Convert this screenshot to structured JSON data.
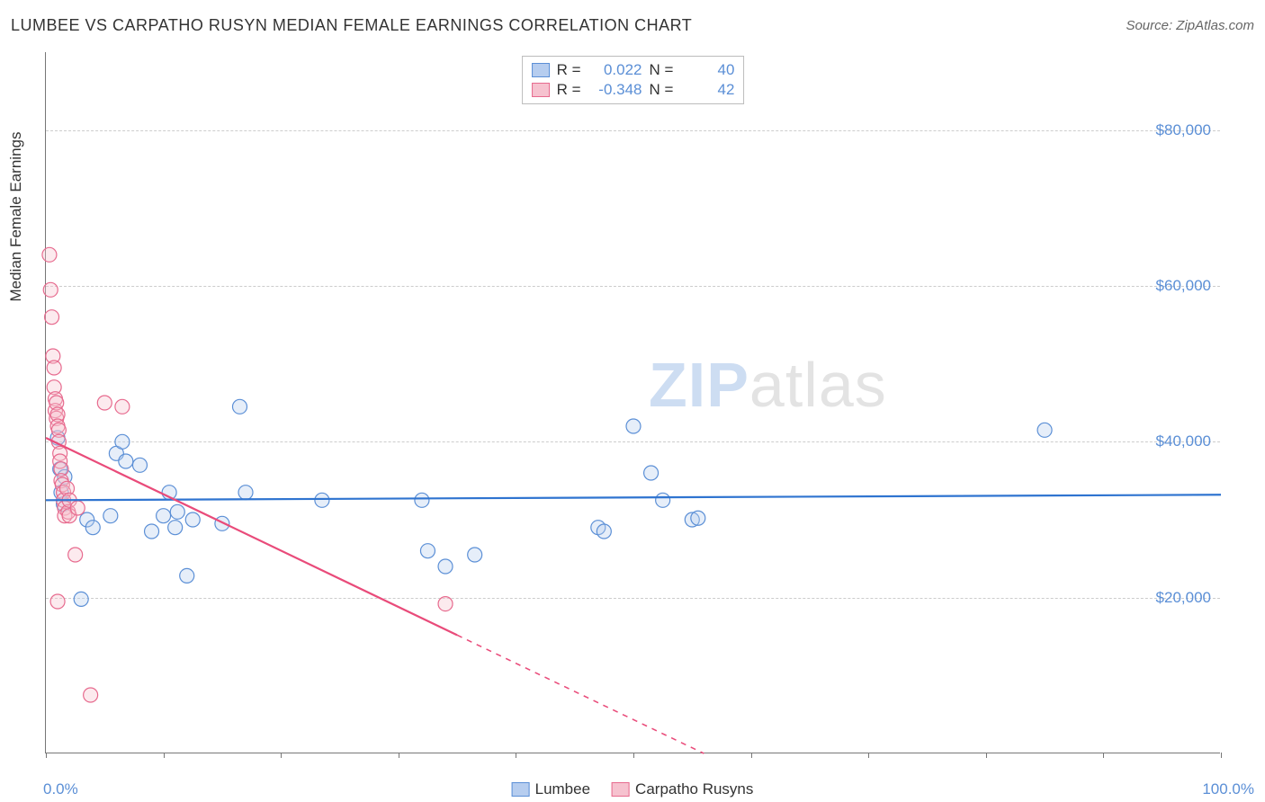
{
  "title": "LUMBEE VS CARPATHO RUSYN MEDIAN FEMALE EARNINGS CORRELATION CHART",
  "source_label": "Source: ZipAtlas.com",
  "y_axis_label": "Median Female Earnings",
  "x_min_label": "0.0%",
  "x_max_label": "100.0%",
  "watermark_a": "ZIP",
  "watermark_b": "atlas",
  "chart": {
    "type": "scatter",
    "background_color": "#ffffff",
    "grid_color": "#cccccc",
    "axis_color": "#777777",
    "xlim": [
      0,
      100
    ],
    "ylim": [
      0,
      90000
    ],
    "y_ticks": [
      20000,
      40000,
      60000,
      80000
    ],
    "y_tick_labels": [
      "$20,000",
      "$40,000",
      "$60,000",
      "$80,000"
    ],
    "x_ticks": [
      0,
      10,
      20,
      30,
      40,
      50,
      60,
      70,
      80,
      90,
      100
    ],
    "marker_radius": 8,
    "marker_stroke_width": 1.2,
    "marker_fill_opacity": 0.35,
    "line_width": 2.2,
    "series": [
      {
        "name": "Lumbee",
        "color_fill": "#b6cdef",
        "color_stroke": "#5b8fd6",
        "line_color": "#2f74d0",
        "R": "0.022",
        "N": "40",
        "trend": {
          "x1": 0,
          "y1": 32500,
          "x2": 100,
          "y2": 33200
        },
        "points": [
          [
            1.0,
            40500
          ],
          [
            1.2,
            36500
          ],
          [
            1.3,
            33500
          ],
          [
            1.5,
            32000
          ],
          [
            1.6,
            35500
          ],
          [
            3.0,
            19800
          ],
          [
            3.5,
            30000
          ],
          [
            4.0,
            29000
          ],
          [
            5.5,
            30500
          ],
          [
            6.0,
            38500
          ],
          [
            6.5,
            40000
          ],
          [
            6.8,
            37500
          ],
          [
            8.0,
            37000
          ],
          [
            9.0,
            28500
          ],
          [
            10.0,
            30500
          ],
          [
            10.5,
            33500
          ],
          [
            11.0,
            29000
          ],
          [
            11.2,
            31000
          ],
          [
            12.0,
            22800
          ],
          [
            12.5,
            30000
          ],
          [
            15.0,
            29500
          ],
          [
            16.5,
            44500
          ],
          [
            17.0,
            33500
          ],
          [
            23.5,
            32500
          ],
          [
            32.0,
            32500
          ],
          [
            32.5,
            26000
          ],
          [
            34.0,
            24000
          ],
          [
            36.5,
            25500
          ],
          [
            47.0,
            29000
          ],
          [
            47.5,
            28500
          ],
          [
            50.0,
            42000
          ],
          [
            51.5,
            36000
          ],
          [
            52.5,
            32500
          ],
          [
            55.0,
            30000
          ],
          [
            55.5,
            30200
          ],
          [
            85.0,
            41500
          ]
        ]
      },
      {
        "name": "Carpatho Rusyns",
        "color_fill": "#f6c2cf",
        "color_stroke": "#e76a8e",
        "line_color": "#e94b7a",
        "R": "-0.348",
        "N": "42",
        "trend": {
          "x1": 0,
          "y1": 40500,
          "x2": 56,
          "y2": 0
        },
        "trend_dashed_from_x": 35,
        "points": [
          [
            0.3,
            64000
          ],
          [
            0.4,
            59500
          ],
          [
            0.5,
            56000
          ],
          [
            0.6,
            51000
          ],
          [
            0.7,
            49500
          ],
          [
            0.7,
            47000
          ],
          [
            0.8,
            45500
          ],
          [
            0.8,
            44000
          ],
          [
            0.9,
            45000
          ],
          [
            0.9,
            43000
          ],
          [
            1.0,
            43500
          ],
          [
            1.0,
            42000
          ],
          [
            1.1,
            41500
          ],
          [
            1.1,
            40000
          ],
          [
            1.2,
            38500
          ],
          [
            1.2,
            37500
          ],
          [
            1.3,
            36500
          ],
          [
            1.3,
            35000
          ],
          [
            1.4,
            34500
          ],
          [
            1.5,
            33500
          ],
          [
            1.5,
            32500
          ],
          [
            1.6,
            31500
          ],
          [
            1.6,
            30500
          ],
          [
            1.8,
            34000
          ],
          [
            1.9,
            31000
          ],
          [
            1.0,
            19500
          ],
          [
            2.0,
            32500
          ],
          [
            2.0,
            30500
          ],
          [
            2.5,
            25500
          ],
          [
            2.7,
            31500
          ],
          [
            3.8,
            7500
          ],
          [
            5.0,
            45000
          ],
          [
            6.5,
            44500
          ],
          [
            34.0,
            19200
          ]
        ]
      }
    ]
  },
  "stats_legend_labels": {
    "R": "R =",
    "N": "N ="
  },
  "series_legend_labels": [
    "Lumbee",
    "Carpatho Rusyns"
  ]
}
